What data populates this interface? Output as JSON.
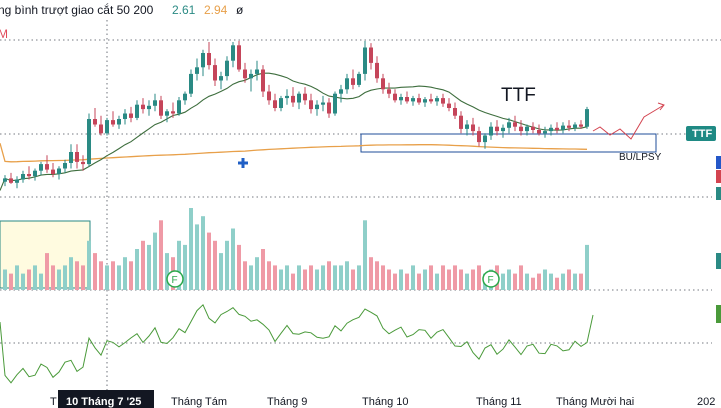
{
  "header": {
    "title_fragment": "ng bình trượt giao cắt 50 200",
    "value1": "2.61",
    "value2": "2.94",
    "symbol": "ø",
    "left_stub": "M"
  },
  "colors": {
    "up": "#2a8a84",
    "down": "#c5455a",
    "vol_up": "#8fcfc9",
    "vol_down": "#ef9aa6",
    "ma_fast": "#3e6e3e",
    "ma_slow": "#e8a04a",
    "box": "#1f4e9a",
    "indicator": "#4a9a3a",
    "projection": "#d34450",
    "tag_bg": "#1f8a84",
    "marker": "#1f5fc5"
  },
  "chart_data": {
    "type": "candlestick",
    "symbol": "TTF",
    "ylabel_tag": "TTF",
    "annotation": "BU/LPSY",
    "x_axis_labels": [
      "T",
      "10 Tháng 7 '25",
      "Tháng Tám",
      "Tháng 9",
      "Tháng 10",
      "Tháng 11",
      "Tháng Mười hai",
      "202"
    ],
    "y_range": [
      1.95,
      3.55
    ],
    "candles": [
      [
        2.28,
        2.34,
        2.24,
        2.31
      ],
      [
        2.31,
        2.36,
        2.26,
        2.27
      ],
      [
        2.27,
        2.33,
        2.22,
        2.3
      ],
      [
        2.3,
        2.38,
        2.27,
        2.35
      ],
      [
        2.35,
        2.42,
        2.3,
        2.33
      ],
      [
        2.33,
        2.4,
        2.29,
        2.38
      ],
      [
        2.38,
        2.46,
        2.34,
        2.44
      ],
      [
        2.44,
        2.52,
        2.36,
        2.39
      ],
      [
        2.39,
        2.45,
        2.32,
        2.35
      ],
      [
        2.35,
        2.42,
        2.3,
        2.4
      ],
      [
        2.4,
        2.48,
        2.36,
        2.45
      ],
      [
        2.45,
        2.62,
        2.4,
        2.55
      ],
      [
        2.55,
        2.62,
        2.4,
        2.46
      ],
      [
        2.46,
        2.52,
        2.38,
        2.44
      ],
      [
        2.44,
        2.9,
        2.42,
        2.85
      ],
      [
        2.85,
        2.95,
        2.78,
        2.8
      ],
      [
        2.8,
        2.88,
        2.7,
        2.72
      ],
      [
        2.72,
        2.86,
        2.7,
        2.84
      ],
      [
        2.84,
        2.92,
        2.78,
        2.8
      ],
      [
        2.8,
        2.88,
        2.76,
        2.85
      ],
      [
        2.85,
        2.94,
        2.8,
        2.9
      ],
      [
        2.9,
        2.96,
        2.82,
        2.86
      ],
      [
        2.86,
        3.02,
        2.84,
        2.98
      ],
      [
        2.98,
        3.04,
        2.9,
        2.94
      ],
      [
        2.94,
        3.02,
        2.88,
        2.97
      ],
      [
        2.97,
        3.08,
        2.92,
        3.02
      ],
      [
        3.02,
        3.06,
        2.85,
        2.88
      ],
      [
        2.88,
        2.94,
        2.82,
        2.92
      ],
      [
        2.92,
        3.0,
        2.86,
        2.9
      ],
      [
        2.9,
        3.05,
        2.88,
        3.02
      ],
      [
        3.02,
        3.1,
        2.98,
        3.08
      ],
      [
        3.08,
        3.3,
        3.05,
        3.26
      ],
      [
        3.26,
        3.4,
        3.2,
        3.32
      ],
      [
        3.32,
        3.48,
        3.24,
        3.45
      ],
      [
        3.45,
        3.55,
        3.3,
        3.34
      ],
      [
        3.34,
        3.4,
        3.15,
        3.2
      ],
      [
        3.2,
        3.28,
        3.12,
        3.24
      ],
      [
        3.24,
        3.42,
        3.2,
        3.38
      ],
      [
        3.38,
        3.55,
        3.32,
        3.52
      ],
      [
        3.52,
        3.56,
        3.28,
        3.3
      ],
      [
        3.3,
        3.36,
        3.18,
        3.22
      ],
      [
        3.22,
        3.3,
        3.1,
        3.26
      ],
      [
        3.26,
        3.38,
        3.2,
        3.3
      ],
      [
        3.3,
        3.34,
        3.05,
        3.1
      ],
      [
        3.1,
        3.16,
        2.98,
        3.02
      ],
      [
        3.02,
        3.08,
        2.92,
        2.95
      ],
      [
        2.95,
        3.06,
        2.92,
        3.04
      ],
      [
        3.04,
        3.12,
        2.98,
        3.06
      ],
      [
        3.06,
        3.14,
        2.96,
        3.0
      ],
      [
        3.0,
        3.1,
        2.94,
        3.08
      ],
      [
        3.08,
        3.14,
        2.98,
        3.02
      ],
      [
        3.02,
        3.08,
        2.9,
        2.94
      ],
      [
        2.94,
        3.02,
        2.88,
        2.98
      ],
      [
        2.98,
        3.06,
        2.92,
        3.0
      ],
      [
        3.0,
        3.04,
        2.86,
        2.9
      ],
      [
        2.9,
        3.1,
        2.88,
        3.08
      ],
      [
        3.08,
        3.16,
        3.0,
        3.12
      ],
      [
        3.12,
        3.26,
        3.08,
        3.22
      ],
      [
        3.22,
        3.3,
        3.12,
        3.16
      ],
      [
        3.16,
        3.28,
        3.14,
        3.26
      ],
      [
        3.26,
        3.56,
        3.2,
        3.5
      ],
      [
        3.5,
        3.54,
        3.3,
        3.36
      ],
      [
        3.36,
        3.42,
        3.18,
        3.22
      ],
      [
        3.22,
        3.26,
        3.08,
        3.12
      ],
      [
        3.12,
        3.18,
        3.04,
        3.08
      ],
      [
        3.08,
        3.12,
        3.0,
        3.02
      ],
      [
        3.02,
        3.08,
        2.98,
        3.05
      ],
      [
        3.05,
        3.1,
        2.99,
        3.01
      ],
      [
        3.01,
        3.06,
        2.97,
        3.04
      ],
      [
        3.04,
        3.08,
        2.98,
        3.0
      ],
      [
        3.0,
        3.05,
        2.96,
        3.03
      ],
      [
        3.03,
        3.08,
        2.99,
        3.01
      ],
      [
        3.01,
        3.06,
        2.97,
        3.04
      ],
      [
        3.04,
        3.08,
        2.96,
        2.99
      ],
      [
        2.99,
        3.04,
        2.92,
        2.95
      ],
      [
        2.95,
        3.0,
        2.85,
        2.88
      ],
      [
        2.88,
        2.92,
        2.72,
        2.76
      ],
      [
        2.76,
        2.84,
        2.7,
        2.8
      ],
      [
        2.8,
        2.86,
        2.7,
        2.74
      ],
      [
        2.74,
        2.78,
        2.6,
        2.64
      ],
      [
        2.64,
        2.72,
        2.58,
        2.7
      ],
      [
        2.7,
        2.82,
        2.66,
        2.78
      ],
      [
        2.78,
        2.84,
        2.7,
        2.74
      ],
      [
        2.74,
        2.8,
        2.68,
        2.77
      ],
      [
        2.77,
        2.86,
        2.72,
        2.82
      ],
      [
        2.82,
        2.88,
        2.74,
        2.78
      ],
      [
        2.78,
        2.84,
        2.7,
        2.74
      ],
      [
        2.74,
        2.8,
        2.7,
        2.78
      ],
      [
        2.78,
        2.82,
        2.72,
        2.75
      ],
      [
        2.75,
        2.8,
        2.7,
        2.72
      ],
      [
        2.72,
        2.78,
        2.68,
        2.74
      ],
      [
        2.74,
        2.8,
        2.7,
        2.77
      ],
      [
        2.77,
        2.82,
        2.72,
        2.75
      ],
      [
        2.75,
        2.82,
        2.72,
        2.79
      ],
      [
        2.79,
        2.84,
        2.74,
        2.77
      ],
      [
        2.77,
        2.82,
        2.74,
        2.8
      ],
      [
        2.8,
        2.84,
        2.76,
        2.78
      ],
      [
        2.78,
        2.96,
        2.76,
        2.94
      ]
    ],
    "volumes": [
      0.25,
      0.2,
      0.3,
      0.2,
      0.25,
      0.3,
      0.2,
      0.45,
      0.3,
      0.25,
      0.3,
      0.4,
      0.35,
      0.3,
      0.6,
      0.45,
      0.35,
      0.3,
      0.35,
      0.3,
      0.4,
      0.35,
      0.5,
      0.6,
      0.55,
      0.7,
      0.85,
      0.45,
      0.4,
      0.6,
      0.55,
      1.0,
      0.8,
      0.9,
      0.7,
      0.6,
      0.45,
      0.6,
      0.75,
      0.55,
      0.35,
      0.3,
      0.4,
      0.5,
      0.35,
      0.3,
      0.25,
      0.3,
      0.2,
      0.3,
      0.25,
      0.3,
      0.25,
      0.3,
      0.35,
      0.3,
      0.3,
      0.35,
      0.25,
      0.3,
      0.85,
      0.4,
      0.35,
      0.3,
      0.25,
      0.2,
      0.25,
      0.2,
      0.3,
      0.2,
      0.25,
      0.3,
      0.2,
      0.3,
      0.25,
      0.3,
      0.25,
      0.2,
      0.25,
      0.3,
      0.2,
      0.25,
      0.3,
      0.2,
      0.25,
      0.2,
      0.3,
      0.2,
      0.15,
      0.2,
      0.25,
      0.2,
      0.15,
      0.2,
      0.25,
      0.2,
      0.2,
      0.55
    ]
  }
}
